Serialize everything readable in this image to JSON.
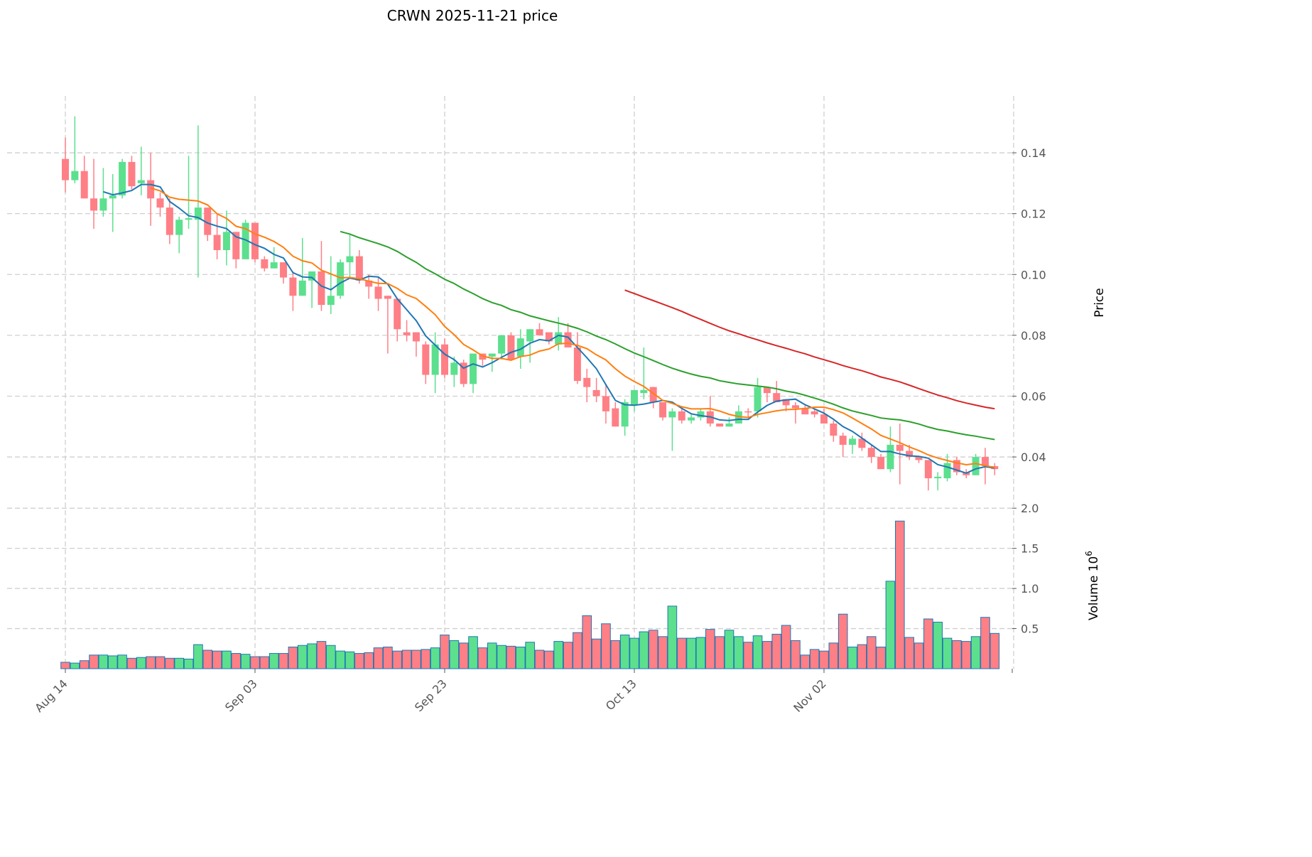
{
  "chart_data": {
    "type": "candlestick",
    "title": "CRWN  2025-11-21  price",
    "price_ylabel": "Price",
    "volume_ylabel": "Volume  10",
    "volume_exponent": "6",
    "price_ylim": [
      0.0267,
      0.1587
    ],
    "volume_ylim": [
      0,
      2.09
    ],
    "price_ticks": [
      "0.04",
      "0.06",
      "0.08",
      "0.10",
      "0.12",
      "0.14"
    ],
    "volume_ticks": [
      "0.5",
      "1.0",
      "1.5",
      "2.0"
    ],
    "x_ticks": [
      {
        "label": "Aug 14",
        "index": 0
      },
      {
        "label": "Sep 03",
        "index": 20
      },
      {
        "label": "Sep 23",
        "index": 40
      },
      {
        "label": "Oct 13",
        "index": 60
      },
      {
        "label": "Nov 02",
        "index": 80
      }
    ],
    "grid": true,
    "moving_averages": [
      {
        "period": 5,
        "color": "#1f77b4"
      },
      {
        "period": 10,
        "color": "#ff7f0e"
      },
      {
        "period": 30,
        "color": "#2ca02c"
      },
      {
        "period": 60,
        "color": "#d62728"
      }
    ],
    "colors": {
      "up": "#5ce08e",
      "down": "#ff7f86",
      "volume_edge": "#1f77b4"
    },
    "ohlc": [
      [
        0.138,
        0.145,
        0.127,
        0.131
      ],
      [
        0.131,
        0.152,
        0.13,
        0.134
      ],
      [
        0.134,
        0.139,
        0.125,
        0.125
      ],
      [
        0.125,
        0.138,
        0.115,
        0.121
      ],
      [
        0.121,
        0.135,
        0.119,
        0.125
      ],
      [
        0.125,
        0.133,
        0.114,
        0.126
      ],
      [
        0.126,
        0.138,
        0.125,
        0.137
      ],
      [
        0.137,
        0.139,
        0.128,
        0.129
      ],
      [
        0.13,
        0.142,
        0.126,
        0.131
      ],
      [
        0.131,
        0.14,
        0.116,
        0.125
      ],
      [
        0.125,
        0.127,
        0.119,
        0.122
      ],
      [
        0.122,
        0.125,
        0.11,
        0.113
      ],
      [
        0.113,
        0.119,
        0.107,
        0.118
      ],
      [
        0.118,
        0.139,
        0.115,
        0.1185
      ],
      [
        0.118,
        0.149,
        0.099,
        0.122
      ],
      [
        0.122,
        0.122,
        0.111,
        0.113
      ],
      [
        0.113,
        0.12,
        0.105,
        0.108
      ],
      [
        0.108,
        0.121,
        0.103,
        0.114
      ],
      [
        0.114,
        0.114,
        0.102,
        0.105
      ],
      [
        0.105,
        0.118,
        0.105,
        0.117
      ],
      [
        0.117,
        0.117,
        0.104,
        0.105
      ],
      [
        0.105,
        0.106,
        0.101,
        0.102
      ],
      [
        0.102,
        0.109,
        0.102,
        0.104
      ],
      [
        0.104,
        0.104,
        0.097,
        0.099
      ],
      [
        0.099,
        0.101,
        0.088,
        0.093
      ],
      [
        0.093,
        0.112,
        0.093,
        0.098
      ],
      [
        0.098,
        0.101,
        0.089,
        0.101
      ],
      [
        0.101,
        0.111,
        0.088,
        0.09
      ],
      [
        0.09,
        0.106,
        0.087,
        0.093
      ],
      [
        0.093,
        0.105,
        0.092,
        0.104
      ],
      [
        0.104,
        0.113,
        0.099,
        0.106
      ],
      [
        0.106,
        0.108,
        0.097,
        0.098
      ],
      [
        0.098,
        0.1,
        0.092,
        0.096
      ],
      [
        0.096,
        0.099,
        0.088,
        0.092
      ],
      [
        0.093,
        0.093,
        0.074,
        0.092
      ],
      [
        0.092,
        0.092,
        0.078,
        0.082
      ],
      [
        0.081,
        0.085,
        0.078,
        0.08
      ],
      [
        0.081,
        0.081,
        0.073,
        0.078
      ],
      [
        0.077,
        0.078,
        0.064,
        0.067
      ],
      [
        0.067,
        0.081,
        0.061,
        0.077
      ],
      [
        0.077,
        0.079,
        0.066,
        0.067
      ],
      [
        0.067,
        0.073,
        0.063,
        0.071
      ],
      [
        0.071,
        0.072,
        0.063,
        0.064
      ],
      [
        0.064,
        0.074,
        0.061,
        0.074
      ],
      [
        0.074,
        0.074,
        0.07,
        0.072
      ],
      [
        0.073,
        0.074,
        0.068,
        0.074
      ],
      [
        0.074,
        0.08,
        0.072,
        0.08
      ],
      [
        0.08,
        0.081,
        0.072,
        0.072
      ],
      [
        0.073,
        0.082,
        0.069,
        0.079
      ],
      [
        0.078,
        0.082,
        0.071,
        0.082
      ],
      [
        0.082,
        0.084,
        0.08,
        0.08
      ],
      [
        0.081,
        0.081,
        0.077,
        0.078
      ],
      [
        0.077,
        0.086,
        0.075,
        0.081
      ],
      [
        0.081,
        0.084,
        0.076,
        0.076
      ],
      [
        0.076,
        0.081,
        0.064,
        0.065
      ],
      [
        0.066,
        0.069,
        0.058,
        0.063
      ],
      [
        0.062,
        0.066,
        0.058,
        0.06
      ],
      [
        0.06,
        0.064,
        0.051,
        0.055
      ],
      [
        0.056,
        0.058,
        0.05,
        0.05
      ],
      [
        0.05,
        0.059,
        0.047,
        0.058
      ],
      [
        0.057,
        0.062,
        0.055,
        0.062
      ],
      [
        0.061,
        0.076,
        0.059,
        0.062
      ],
      [
        0.063,
        0.063,
        0.056,
        0.058
      ],
      [
        0.058,
        0.058,
        0.052,
        0.053
      ],
      [
        0.053,
        0.056,
        0.042,
        0.055
      ],
      [
        0.055,
        0.056,
        0.051,
        0.052
      ],
      [
        0.052,
        0.054,
        0.051,
        0.053
      ],
      [
        0.053,
        0.056,
        0.052,
        0.055
      ],
      [
        0.055,
        0.06,
        0.05,
        0.051
      ],
      [
        0.051,
        0.051,
        0.05,
        0.05
      ],
      [
        0.05,
        0.053,
        0.05,
        0.051
      ],
      [
        0.051,
        0.057,
        0.051,
        0.055
      ],
      [
        0.055,
        0.056,
        0.053,
        0.0548
      ],
      [
        0.055,
        0.066,
        0.053,
        0.063
      ],
      [
        0.063,
        0.063,
        0.058,
        0.061
      ],
      [
        0.061,
        0.065,
        0.058,
        0.058
      ],
      [
        0.059,
        0.059,
        0.055,
        0.057
      ],
      [
        0.057,
        0.058,
        0.051,
        0.056
      ],
      [
        0.056,
        0.057,
        0.054,
        0.054
      ],
      [
        0.055,
        0.056,
        0.053,
        0.054
      ],
      [
        0.054,
        0.056,
        0.051,
        0.051
      ],
      [
        0.051,
        0.052,
        0.045,
        0.047
      ],
      [
        0.047,
        0.048,
        0.04,
        0.044
      ],
      [
        0.044,
        0.047,
        0.041,
        0.046
      ],
      [
        0.046,
        0.048,
        0.042,
        0.043
      ],
      [
        0.043,
        0.044,
        0.038,
        0.04
      ],
      [
        0.04,
        0.041,
        0.036,
        0.036
      ],
      [
        0.036,
        0.05,
        0.035,
        0.044
      ],
      [
        0.044,
        0.051,
        0.031,
        0.042
      ],
      [
        0.042,
        0.044,
        0.039,
        0.04
      ],
      [
        0.04,
        0.04,
        0.038,
        0.039
      ],
      [
        0.039,
        0.039,
        0.029,
        0.033
      ],
      [
        0.033,
        0.035,
        0.029,
        0.0335
      ],
      [
        0.033,
        0.041,
        0.032,
        0.038
      ],
      [
        0.039,
        0.04,
        0.034,
        0.035
      ],
      [
        0.035,
        0.036,
        0.033,
        0.034
      ],
      [
        0.034,
        0.041,
        0.034,
        0.04
      ],
      [
        0.04,
        0.043,
        0.031,
        0.037
      ],
      [
        0.037,
        0.038,
        0.034,
        0.036
      ]
    ],
    "volume": [
      0.08,
      0.07,
      0.1,
      0.17,
      0.17,
      0.16,
      0.17,
      0.13,
      0.14,
      0.15,
      0.15,
      0.13,
      0.13,
      0.12,
      0.3,
      0.23,
      0.22,
      0.22,
      0.19,
      0.18,
      0.15,
      0.15,
      0.19,
      0.19,
      0.27,
      0.29,
      0.31,
      0.34,
      0.29,
      0.22,
      0.21,
      0.19,
      0.2,
      0.26,
      0.27,
      0.22,
      0.23,
      0.23,
      0.24,
      0.26,
      0.42,
      0.35,
      0.32,
      0.4,
      0.26,
      0.32,
      0.29,
      0.28,
      0.27,
      0.33,
      0.23,
      0.22,
      0.34,
      0.33,
      0.45,
      0.66,
      0.37,
      0.56,
      0.35,
      0.42,
      0.38,
      0.46,
      0.48,
      0.4,
      0.78,
      0.38,
      0.38,
      0.39,
      0.49,
      0.4,
      0.48,
      0.4,
      0.33,
      0.41,
      0.34,
      0.43,
      0.54,
      0.35,
      0.17,
      0.24,
      0.22,
      0.32,
      0.68,
      0.27,
      0.3,
      0.4,
      0.27,
      1.09,
      1.84,
      0.39,
      0.32,
      0.62,
      0.58,
      0.38,
      0.35,
      0.34,
      0.4,
      0.64,
      0.44
    ]
  }
}
